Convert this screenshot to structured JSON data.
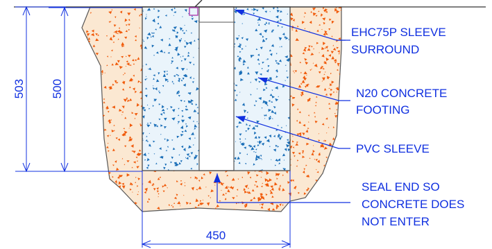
{
  "colors": {
    "annotation": "#1030e0",
    "soil_fill": "#fbe8d2",
    "soil_speck": "#f05a0a",
    "concrete_fill": "#eaf4fb",
    "concrete_speck": "#1b6fb8",
    "outline": "#555555",
    "ground_line": "#333333",
    "seal_marker": "#b040b0"
  },
  "labels": {
    "sleeve_surround": [
      "EHC75P SLEEVE",
      "SURROUND"
    ],
    "concrete_footing": [
      "N20 CONCRETE",
      "FOOTING"
    ],
    "pvc_sleeve": [
      "PVC SLEEVE"
    ],
    "seal_end": [
      "SEAL END SO",
      "CONCRETE DOES",
      "NOT ENTER"
    ]
  },
  "dimensions": {
    "overall_depth": "503",
    "footing_depth": "500",
    "footing_width": "450"
  }
}
